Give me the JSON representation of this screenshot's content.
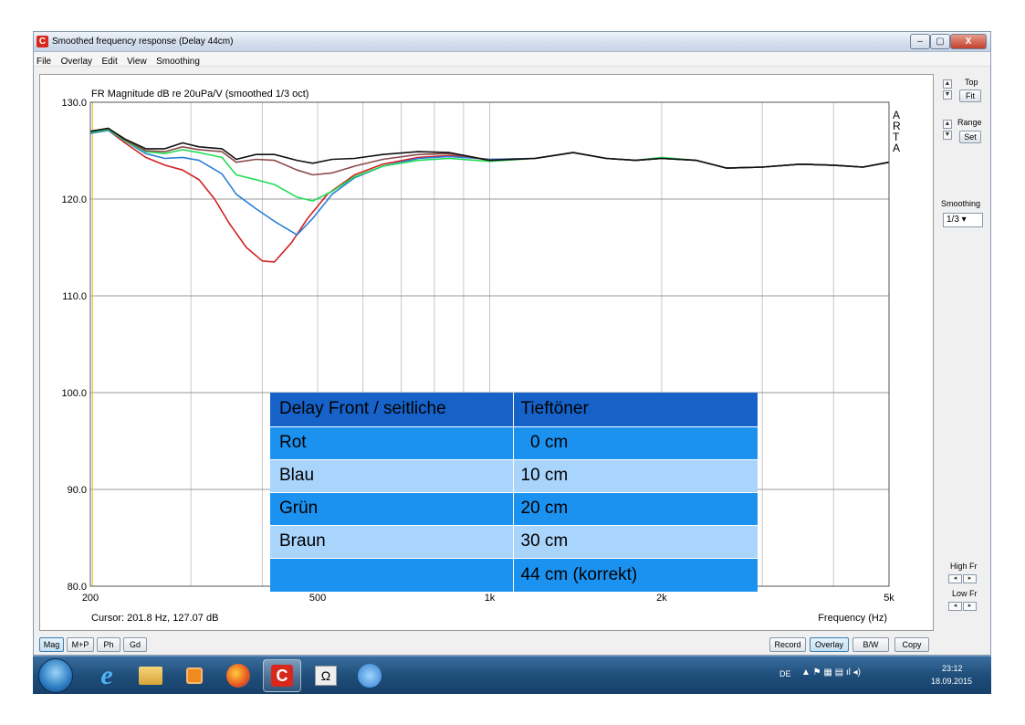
{
  "window": {
    "title": "Smoothed frequency response (Delay 44cm)",
    "app_icon": "arta-icon",
    "controls": {
      "minimize": "–",
      "maximize": "▢",
      "close": "X"
    }
  },
  "menu": [
    "File",
    "Overlay",
    "Edit",
    "View",
    "Smoothing"
  ],
  "plot": {
    "ylabel": "FR Magnitude dB re 20uPa/V (smoothed 1/3 oct)",
    "xlabel": "Frequency (Hz)",
    "cursor_readout": "Cursor: 201.8 Hz, 127.07 dB",
    "brand_letters": [
      "A",
      "R",
      "T",
      "A"
    ]
  },
  "legend_table": {
    "header": [
      "Delay Front / seitliche",
      "Tieftöner"
    ],
    "rows": [
      [
        "Rot",
        "  0 cm"
      ],
      [
        "Blau",
        "10 cm"
      ],
      [
        "Grün",
        "20 cm"
      ],
      [
        "Braun",
        "30 cm"
      ],
      [
        "",
        "44 cm (korrekt)"
      ]
    ]
  },
  "chart_data": {
    "type": "line",
    "x_scale": "log",
    "xlim": [
      200,
      5000
    ],
    "ylim": [
      80,
      130
    ],
    "x_ticks": [
      {
        "value": 200,
        "label": "200"
      },
      {
        "value": 500,
        "label": "500"
      },
      {
        "value": 1000,
        "label": "1k"
      },
      {
        "value": 2000,
        "label": "2k"
      },
      {
        "value": 5000,
        "label": "5k"
      }
    ],
    "y_ticks": [
      {
        "value": 130,
        "label": "130.0"
      },
      {
        "value": 120,
        "label": "120.0"
      },
      {
        "value": 110,
        "label": "110.0"
      },
      {
        "value": 100,
        "label": "100.0"
      },
      {
        "value": 90,
        "label": "90.0"
      },
      {
        "value": 80,
        "label": "80.0"
      }
    ],
    "grid": true,
    "cursor_x": 201.8,
    "series": [
      {
        "color": "#d42020",
        "points": [
          [
            200,
            126.8
          ],
          [
            215,
            127.1
          ],
          [
            230,
            125.8
          ],
          [
            250,
            124.3
          ],
          [
            270,
            123.5
          ],
          [
            290,
            123.0
          ],
          [
            310,
            122.0
          ],
          [
            330,
            120.0
          ],
          [
            350,
            117.5
          ],
          [
            375,
            115.0
          ],
          [
            400,
            113.6
          ],
          [
            420,
            113.5
          ],
          [
            450,
            115.5
          ],
          [
            480,
            118.0
          ],
          [
            520,
            120.5
          ],
          [
            580,
            122.5
          ],
          [
            650,
            123.6
          ],
          [
            750,
            124.3
          ],
          [
            850,
            124.5
          ],
          [
            1000,
            124.1
          ],
          [
            1200,
            124.2
          ],
          [
            1400,
            124.8
          ],
          [
            1600,
            124.2
          ],
          [
            1800,
            124.0
          ],
          [
            2000,
            124.2
          ],
          [
            2300,
            124.0
          ],
          [
            2600,
            123.2
          ],
          [
            3000,
            123.3
          ],
          [
            3500,
            123.6
          ],
          [
            4000,
            123.5
          ],
          [
            4500,
            123.3
          ],
          [
            5000,
            123.8
          ]
        ]
      },
      {
        "color": "#2a7fd8",
        "points": [
          [
            200,
            126.8
          ],
          [
            215,
            127.1
          ],
          [
            230,
            126.0
          ],
          [
            250,
            124.7
          ],
          [
            270,
            124.2
          ],
          [
            290,
            124.3
          ],
          [
            310,
            124.0
          ],
          [
            340,
            122.6
          ],
          [
            360,
            120.5
          ],
          [
            390,
            119.0
          ],
          [
            420,
            117.7
          ],
          [
            460,
            116.3
          ],
          [
            490,
            118.0
          ],
          [
            530,
            120.5
          ],
          [
            580,
            122.2
          ],
          [
            650,
            123.4
          ],
          [
            750,
            124.2
          ],
          [
            850,
            124.4
          ],
          [
            1000,
            124.1
          ],
          [
            1200,
            124.2
          ],
          [
            1400,
            124.8
          ],
          [
            1600,
            124.2
          ],
          [
            1800,
            124.0
          ],
          [
            2000,
            124.2
          ],
          [
            2300,
            124.0
          ],
          [
            2600,
            123.2
          ],
          [
            3000,
            123.3
          ],
          [
            3500,
            123.6
          ],
          [
            4000,
            123.5
          ],
          [
            4500,
            123.3
          ],
          [
            5000,
            123.8
          ]
        ]
      },
      {
        "color": "#22dd55",
        "points": [
          [
            200,
            126.9
          ],
          [
            215,
            127.2
          ],
          [
            230,
            126.0
          ],
          [
            250,
            124.9
          ],
          [
            270,
            124.7
          ],
          [
            290,
            125.1
          ],
          [
            310,
            124.8
          ],
          [
            340,
            124.3
          ],
          [
            360,
            122.5
          ],
          [
            390,
            122.0
          ],
          [
            420,
            121.5
          ],
          [
            460,
            120.2
          ],
          [
            490,
            119.8
          ],
          [
            530,
            120.8
          ],
          [
            580,
            122.3
          ],
          [
            650,
            123.4
          ],
          [
            750,
            124.0
          ],
          [
            850,
            124.2
          ],
          [
            1000,
            123.9
          ],
          [
            1200,
            124.2
          ],
          [
            1400,
            124.8
          ],
          [
            1600,
            124.2
          ],
          [
            1800,
            124.0
          ],
          [
            2000,
            124.3
          ],
          [
            2300,
            124.0
          ],
          [
            2600,
            123.2
          ],
          [
            3000,
            123.3
          ],
          [
            3500,
            123.6
          ],
          [
            4000,
            123.5
          ],
          [
            4500,
            123.3
          ],
          [
            5000,
            123.8
          ]
        ]
      },
      {
        "color": "#8b4a4a",
        "points": [
          [
            200,
            127.0
          ],
          [
            215,
            127.3
          ],
          [
            230,
            126.1
          ],
          [
            250,
            125.0
          ],
          [
            270,
            124.9
          ],
          [
            290,
            125.4
          ],
          [
            310,
            125.1
          ],
          [
            340,
            124.9
          ],
          [
            360,
            123.8
          ],
          [
            390,
            124.1
          ],
          [
            420,
            124.0
          ],
          [
            460,
            123.0
          ],
          [
            490,
            122.5
          ],
          [
            530,
            122.7
          ],
          [
            580,
            123.4
          ],
          [
            650,
            124.1
          ],
          [
            750,
            124.6
          ],
          [
            850,
            124.7
          ],
          [
            1000,
            124.0
          ],
          [
            1200,
            124.2
          ],
          [
            1400,
            124.8
          ],
          [
            1600,
            124.2
          ],
          [
            1800,
            124.0
          ],
          [
            2000,
            124.2
          ],
          [
            2300,
            124.0
          ],
          [
            2600,
            123.2
          ],
          [
            3000,
            123.3
          ],
          [
            3500,
            123.6
          ],
          [
            4000,
            123.5
          ],
          [
            4500,
            123.3
          ],
          [
            5000,
            123.8
          ]
        ]
      },
      {
        "color": "#111111",
        "points": [
          [
            200,
            127.0
          ],
          [
            215,
            127.3
          ],
          [
            230,
            126.2
          ],
          [
            250,
            125.2
          ],
          [
            270,
            125.2
          ],
          [
            290,
            125.8
          ],
          [
            310,
            125.4
          ],
          [
            340,
            125.2
          ],
          [
            360,
            124.1
          ],
          [
            390,
            124.6
          ],
          [
            420,
            124.6
          ],
          [
            460,
            124.0
          ],
          [
            490,
            123.7
          ],
          [
            530,
            124.1
          ],
          [
            580,
            124.2
          ],
          [
            650,
            124.6
          ],
          [
            750,
            124.9
          ],
          [
            850,
            124.8
          ],
          [
            1000,
            124.0
          ],
          [
            1200,
            124.2
          ],
          [
            1400,
            124.8
          ],
          [
            1600,
            124.2
          ],
          [
            1800,
            124.0
          ],
          [
            2000,
            124.2
          ],
          [
            2300,
            124.0
          ],
          [
            2600,
            123.2
          ],
          [
            3000,
            123.3
          ],
          [
            3500,
            123.6
          ],
          [
            4000,
            123.5
          ],
          [
            4500,
            123.3
          ],
          [
            5000,
            123.8
          ]
        ]
      }
    ]
  },
  "right_panel": {
    "top_label": "Top",
    "fit_label": "Fit",
    "range_label": "Range",
    "set_label": "Set",
    "smoothing_label": "Smoothing",
    "smoothing_value": "1/3 ▾",
    "highfr_label": "High Fr",
    "lowfr_label": "Low Fr"
  },
  "bottom_buttons": {
    "left": [
      "Mag",
      "M+P",
      "Ph",
      "Gd"
    ],
    "right": [
      "Record",
      "Overlay",
      "B/W",
      "Copy"
    ]
  },
  "taskbar": {
    "language": "DE",
    "time": "23:12",
    "date": "18.09.2015",
    "items": [
      "ie-icon",
      "explorer-icon",
      "media-player-icon",
      "firefox-icon",
      "arta-icon",
      "omega-icon",
      "app-icon"
    ]
  }
}
